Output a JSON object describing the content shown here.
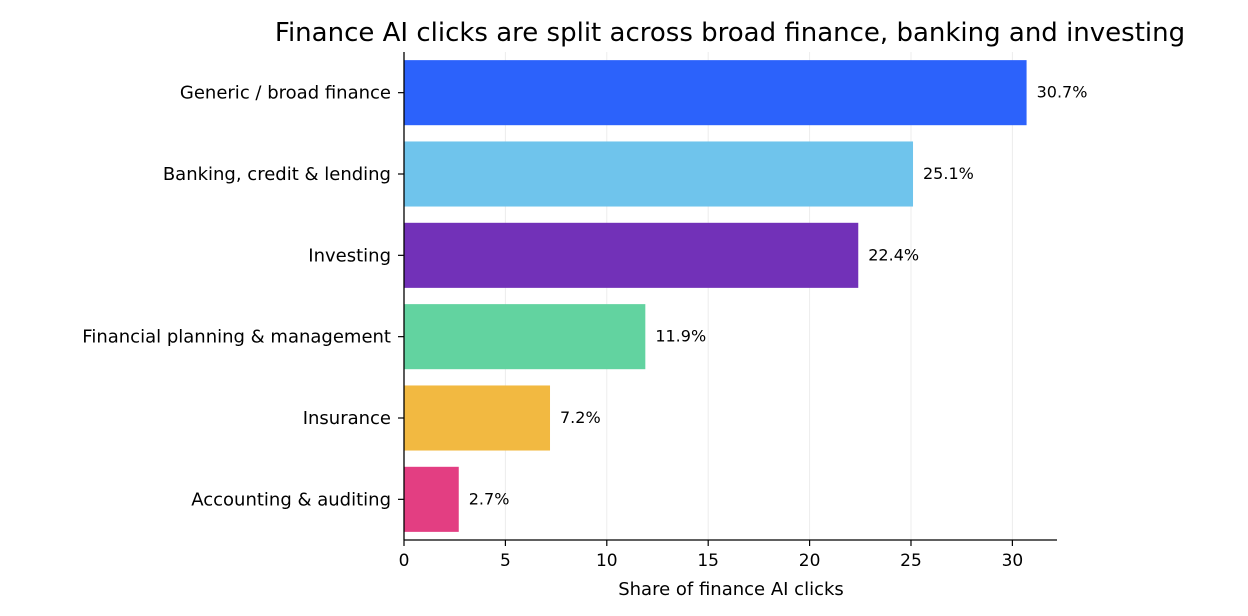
{
  "chart_data": {
    "type": "bar",
    "orientation": "horizontal",
    "title": "Finance AI clicks are split across broad finance, banking and investing",
    "xlabel": "Share of finance AI clicks",
    "ylabel": "",
    "categories": [
      "Generic / broad finance",
      "Banking, credit & lending",
      "Investing",
      "Financial planning & management",
      "Insurance",
      "Accounting & auditing"
    ],
    "values": [
      30.7,
      25.1,
      22.4,
      11.9,
      7.2,
      2.7
    ],
    "value_labels": [
      "30.7%",
      "25.1%",
      "22.4%",
      "11.9%",
      "7.2%",
      "2.7%"
    ],
    "colors": [
      "#2c62fb",
      "#6fc4ec",
      "#7231b8",
      "#62d3a0",
      "#f2b941",
      "#e33e82"
    ],
    "xlim": [
      0,
      32.2
    ],
    "xticks": [
      0,
      5,
      10,
      15,
      20,
      25,
      30
    ],
    "xtick_labels": [
      "0",
      "5",
      "10",
      "15",
      "20",
      "25",
      "30"
    ],
    "grid": "vertical, light",
    "legend": "none"
  }
}
